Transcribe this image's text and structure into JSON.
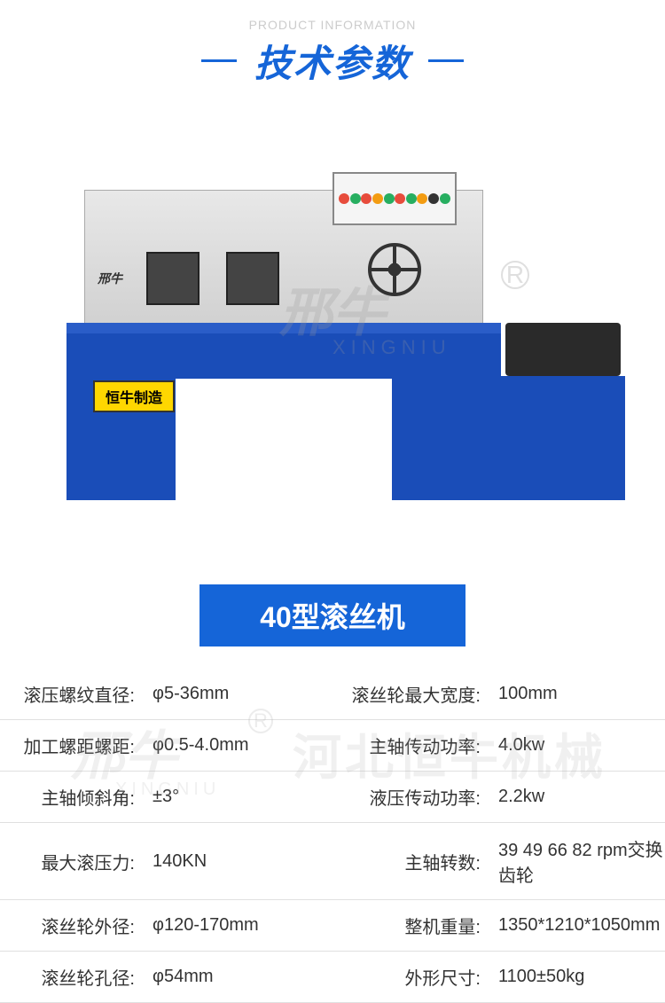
{
  "header": {
    "subtitle_en": "PRODUCT INFORMATION",
    "main_title": "技术参数"
  },
  "product_image": {
    "brand_text": "邢牛",
    "yellow_label": "恒牛制造",
    "watermark_brand": "邢牛",
    "watermark_pinyin": "XINGNIU",
    "watermark_r": "R",
    "machine_color": "#1a4db8",
    "machine_top_color": "#d0d0d0"
  },
  "product_name": "40型滚丝机",
  "specs": {
    "rows": [
      {
        "label1": "滚压螺纹直径:",
        "value1": "φ5-36mm",
        "label2": "滚丝轮最大宽度:",
        "value2": "100mm"
      },
      {
        "label1": "加工螺距螺距:",
        "value1": "φ0.5-4.0mm",
        "label2": "主轴传动功率:",
        "value2": "4.0kw"
      },
      {
        "label1": "主轴倾斜角:",
        "value1": "±3°",
        "label2": "液压传动功率:",
        "value2": "2.2kw"
      },
      {
        "label1": "最大滚压力:",
        "value1": "140KN",
        "label2": "主轴转数:",
        "value2": "39 49 66 82 rpm交换齿轮"
      },
      {
        "label1": "滚丝轮外径:",
        "value1": "φ120-170mm",
        "label2": "整机重量:",
        "value2": "1350*1210*1050mm"
      },
      {
        "label1": "滚丝轮孔径:",
        "value1": "φ54mm",
        "label2": "外形尺寸:",
        "value2": "1100±50kg"
      }
    ]
  },
  "watermark2": {
    "brand": "邢牛",
    "pinyin": "XINGNIU",
    "r": "R",
    "company": "河北恒牛机械"
  },
  "colors": {
    "primary_blue": "#1565d8",
    "machine_blue": "#1a4db8",
    "border_gray": "#e0e0e0",
    "text_color": "#333333"
  }
}
